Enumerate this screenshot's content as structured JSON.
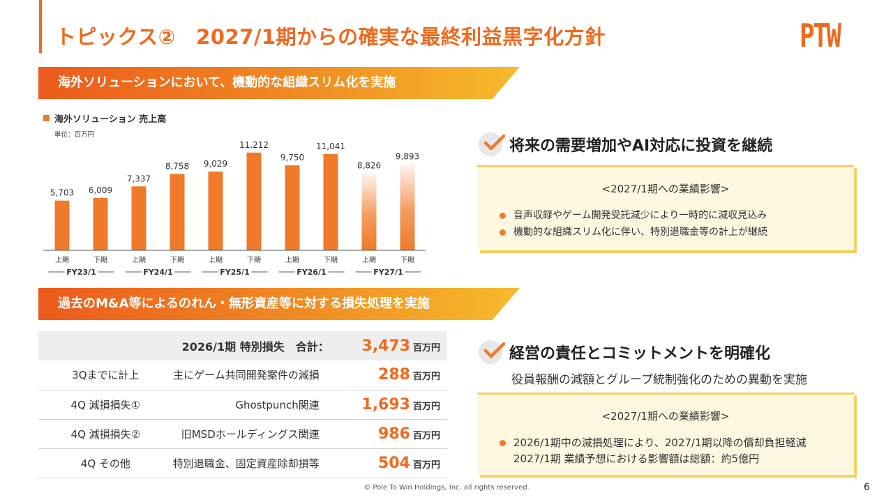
{
  "header": {
    "title": "トピックス②　2027/1期からの確実な最終利益黒字化方針",
    "logo_text": "PTW"
  },
  "section1": {
    "banner": "海外ソリューションにおいて、機動的な組織スリム化を実施",
    "legend": "海外ソリューション 売上高",
    "unit": "単位：百万円"
  },
  "chart_data": {
    "type": "bar",
    "title": "海外ソリューション 売上高",
    "unit": "単位：百万円",
    "categories": [
      "上期",
      "下期",
      "上期",
      "下期",
      "上期",
      "下期",
      "上期",
      "下期",
      "上期",
      "下期"
    ],
    "groups": [
      "FY23/1",
      "FY24/1",
      "FY25/1",
      "FY26/1",
      "FY27/1"
    ],
    "values": [
      5703,
      6009,
      7337,
      8758,
      9029,
      11212,
      9750,
      11041,
      8826,
      9893
    ],
    "value_labels": [
      "5,703",
      "6,009",
      "7,337",
      "8,758",
      "9,029",
      "11,212",
      "9,750",
      "11,041",
      "8,826",
      "9,893"
    ],
    "forecast_indices": [
      8,
      9
    ],
    "ylim": [
      0,
      12000
    ],
    "color": "#ef7a29"
  },
  "point1": {
    "heading": "将来の需要増加やAI対応に投資を継続",
    "impact_title": "<2027/1期への業績影響>",
    "items": [
      "音声収録やゲーム開発受託減少により一時的に減収見込み",
      "機動的な組織スリム化に伴い、特別退職金等の計上が継続"
    ]
  },
  "section2": {
    "banner": "過去のM&A等によるのれん・無形資産等に対する損失処理を実施"
  },
  "loss_table": {
    "header_label": "2026/1期 特別損失　合計：",
    "header_value": "3,473",
    "unit": "百万円",
    "rows": [
      {
        "label": "3Qまでに計上",
        "desc": "主にゲーム共同開発案件の減損",
        "value": "288"
      },
      {
        "label": "4Q 減損損失①",
        "desc": "Ghostpunch関連",
        "value": "1,693"
      },
      {
        "label": "4Q 減損損失②",
        "desc": "旧MSDホールディングス関連",
        "value": "986"
      },
      {
        "label": "4Q その他",
        "desc": "特別退職金、固定資産除却損等",
        "value": "504"
      }
    ]
  },
  "point2": {
    "heading": "経営の責任とコミットメントを明確化",
    "subtext": "役員報酬の減額とグループ統制強化のための異動を実施",
    "impact_title": "<2027/1期への業績影響>",
    "item_line1": "2026/1期中の減損処理により、2027/1期以降の償却負担軽減",
    "item_line2": "2027/1期 業績予想における影響額は総額：約5億円"
  },
  "footer": {
    "copyright": "© Pole To Win Holdings, Inc. all rights reserved.",
    "page": "6"
  },
  "colors": {
    "accent": "#ee6a1f",
    "box_bg": "#fff8e0",
    "box_border": "#f7cf63"
  }
}
